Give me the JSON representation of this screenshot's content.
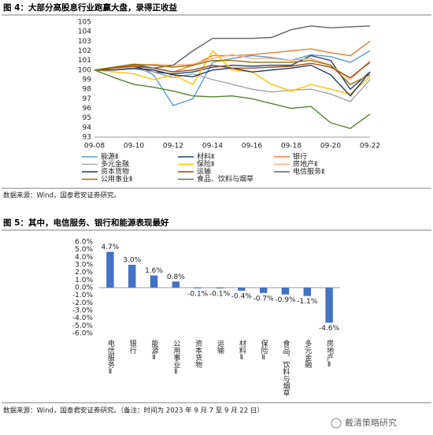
{
  "chart_data": [
    {
      "type": "line",
      "title": "图 4：大部分高股息行业跑赢大盘，录得正收益",
      "source": "数据来源：Wind，国泰君安证券研究。",
      "categories": [
        "09-08",
        null,
        "09-10",
        null,
        "09-12",
        null,
        "09-14",
        null,
        "09-16",
        null,
        "09-18",
        null,
        "09-20",
        null,
        "09-22"
      ],
      "ylim": [
        93,
        105
      ],
      "yticks": [
        93,
        94,
        95,
        96,
        97,
        98,
        99,
        100,
        101,
        102,
        103,
        104,
        105
      ],
      "series": [
        {
          "name": "能源Ⅱ",
          "color": "#5b9bd5",
          "values": [
            100,
            100.2,
            100.5,
            99.5,
            96.3,
            97,
            100.8,
            101.2,
            101.5,
            101.3,
            101,
            101.6,
            101.4,
            100.8,
            102
          ]
        },
        {
          "name": "材料Ⅱ",
          "color": "#264478",
          "values": [
            100,
            100.2,
            100.4,
            99.8,
            99.6,
            99.8,
            100.3,
            100.5,
            100.4,
            100.5,
            100.5,
            101.5,
            101,
            98,
            99.8
          ]
        },
        {
          "name": "银行",
          "color": "#ed7d31",
          "values": [
            100,
            100.2,
            100.5,
            100.2,
            99.8,
            100.5,
            101.5,
            101.5,
            101.6,
            101.8,
            102,
            102.2,
            101.8,
            101.5,
            103
          ]
        },
        {
          "name": "多元金融",
          "color": "#a5a5a5",
          "values": [
            100,
            100,
            100.1,
            99.8,
            99.2,
            99.6,
            99,
            98.5,
            98,
            97.7,
            97.9,
            98,
            97.5,
            96.7,
            99
          ]
        },
        {
          "name": "保险Ⅱ",
          "color": "#ffc000",
          "values": [
            100,
            99.8,
            99.6,
            99,
            99.5,
            98.5,
            102,
            100,
            99.8,
            98.5,
            97.8,
            98.5,
            98,
            97.5,
            99.3
          ]
        },
        {
          "name": "房地产Ⅱ",
          "color": "#f4b183",
          "values": [
            100,
            100.2,
            100.4,
            100.6,
            100.5,
            100.6,
            101.2,
            101.6,
            101.2,
            101.2,
            101,
            101.2,
            100.5,
            99,
            101
          ]
        },
        {
          "name": "资本货物",
          "color": "#1f3864",
          "values": [
            100,
            100,
            100.2,
            100,
            99.5,
            99.3,
            100,
            100.2,
            99.8,
            100,
            100.2,
            100.5,
            99.5,
            97.3,
            99.8
          ]
        },
        {
          "name": "运输",
          "color": "#9e480e",
          "values": [
            100,
            100.2,
            100.4,
            100.2,
            99.8,
            100,
            100.5,
            100.2,
            100.2,
            100.3,
            100.4,
            100.7,
            100.3,
            99.2,
            100.8
          ]
        },
        {
          "name": "电信服务Ⅱ",
          "color": "#636363",
          "values": [
            100,
            100.3,
            100.6,
            100.2,
            100.5,
            102,
            103.3,
            103.3,
            103.3,
            103.4,
            104.2,
            104.6,
            104.4,
            104.5,
            104.6
          ]
        },
        {
          "name": "公用事业Ⅱ",
          "color": "#997300",
          "values": [
            100,
            100.3,
            100.6,
            100.5,
            100.3,
            100.5,
            101,
            101,
            100.8,
            100.8,
            100.8,
            101,
            100.5,
            98.5,
            99.5
          ]
        },
        {
          "name": "食品、饮料与烟草",
          "color": "#548235",
          "values": [
            100,
            99.2,
            98.5,
            98.2,
            97.8,
            97.3,
            97.2,
            97.3,
            97,
            96.5,
            96,
            96.2,
            94.5,
            93.9,
            95.4
          ]
        }
      ]
    },
    {
      "type": "bar",
      "title": "图 5：其中，电信服务、银行和能源表现最好",
      "source": "数据来源：Wind，国泰君安证券研究。（备注：时间为 2023 年 9 月 7 至 9 月 22 日）",
      "color": "#4472c4",
      "categories": [
        "电信服务Ⅱ",
        "银行",
        "能源Ⅱ",
        "公用事业Ⅱ",
        "资本货物",
        "运输",
        "材料Ⅱ",
        "保险Ⅱ",
        "食品、饮料与烟草",
        "多元金融",
        "房地产Ⅱ"
      ],
      "values": [
        4.7,
        3.0,
        1.6,
        0.8,
        -0.1,
        -0.1,
        -0.4,
        -0.7,
        -0.9,
        -1.1,
        -4.6
      ],
      "value_labels": [
        "4.7%",
        "3.0%",
        "1.6%",
        "0.8%",
        "-0.1%",
        "-0.1%",
        "-0.4%",
        "-0.7%",
        "-0.9%",
        "-1.1%",
        "-4.6%"
      ],
      "ylim": [
        -6,
        6
      ],
      "yticks": [
        {
          "value": 6,
          "label": "6.0%"
        },
        {
          "value": 5,
          "label": "5.0%"
        },
        {
          "value": 4,
          "label": "4.0%"
        },
        {
          "value": 3,
          "label": "3.0%"
        },
        {
          "value": 2,
          "label": "2.0%"
        },
        {
          "value": 1,
          "label": "1.0%"
        },
        {
          "value": 0,
          "label": "0.0%"
        },
        {
          "value": -1,
          "label": "-1.0%"
        },
        {
          "value": -2,
          "label": "-2.0%"
        },
        {
          "value": -3,
          "label": "-3.0%"
        },
        {
          "value": -4,
          "label": "-4.0%"
        },
        {
          "value": -5,
          "label": "-5.0%"
        },
        {
          "value": -6,
          "label": "-6.0%"
        }
      ]
    }
  ],
  "watermark": "戴清策略研究"
}
